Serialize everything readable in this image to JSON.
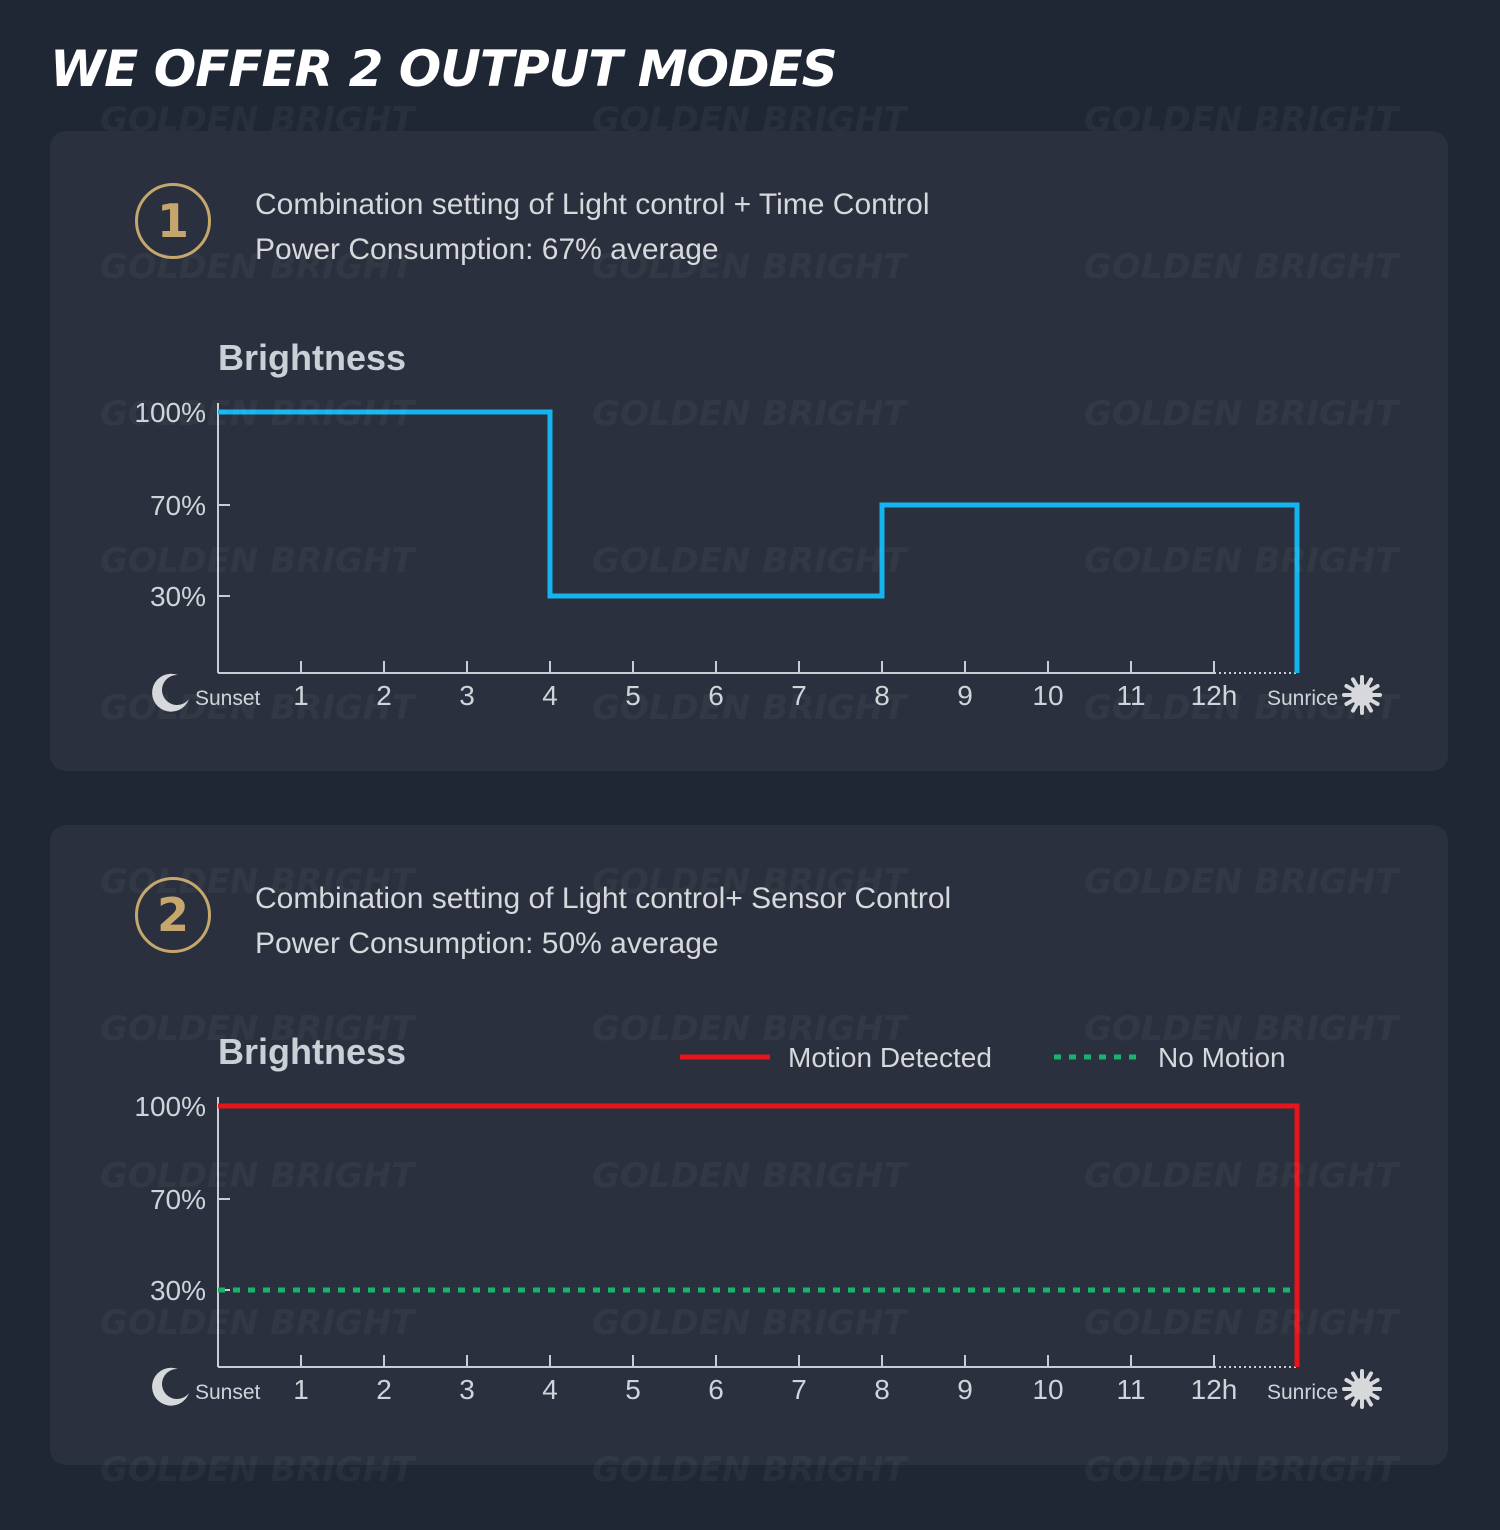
{
  "page_title": "WE OFFER 2 OUTPUT MODES",
  "watermark_text": "GOLDEN BRIGHT",
  "colors": {
    "background": "#1f2735",
    "panel": "#2a303d",
    "badge": "#c5a76d",
    "mode1_line": "#14b4ee",
    "motion_line": "#e8141c",
    "no_motion_line": "#19b46a",
    "axis": "#c9ccd2"
  },
  "modes": [
    {
      "number": "1",
      "line1": "Combination setting of Light control + Time Control",
      "line2": "Power Consumption: 67% average"
    },
    {
      "number": "2",
      "line1": "Combination setting of Light control+ Sensor Control",
      "line2": "Power Consumption: 50% average"
    }
  ],
  "chart_data": [
    {
      "type": "line",
      "step": true,
      "ylabel": "Brightness",
      "y_ticks": [
        "100%",
        "70%",
        "30%"
      ],
      "y_tick_values": [
        100,
        70,
        30
      ],
      "x_start_label": "Sunset",
      "x_end_label": "Sunrice",
      "x_ticks": [
        "1",
        "2",
        "3",
        "4",
        "5",
        "6",
        "7",
        "8",
        "9",
        "10",
        "11",
        "12h"
      ],
      "start_icon": "moon-icon",
      "end_icon": "sun-icon",
      "series": [
        {
          "color": "#14b4ee",
          "style": "solid",
          "points": [
            [
              0,
              100
            ],
            [
              4,
              100
            ],
            [
              4,
              30
            ],
            [
              8,
              30
            ],
            [
              8,
              70
            ],
            [
              13,
              70
            ],
            [
              13,
              0
            ]
          ]
        }
      ]
    },
    {
      "type": "line",
      "step": true,
      "ylabel": "Brightness",
      "y_ticks": [
        "100%",
        "70%",
        "30%"
      ],
      "y_tick_values": [
        100,
        70,
        30
      ],
      "x_start_label": "Sunset",
      "x_end_label": "Sunrice",
      "x_ticks": [
        "1",
        "2",
        "3",
        "4",
        "5",
        "6",
        "7",
        "8",
        "9",
        "10",
        "11",
        "12h"
      ],
      "start_icon": "moon-icon",
      "end_icon": "sun-icon",
      "legend": [
        "Motion Detected",
        "No Motion"
      ],
      "series": [
        {
          "name": "Motion Detected",
          "color": "#e8141c",
          "style": "solid",
          "points": [
            [
              0,
              100
            ],
            [
              13,
              100
            ],
            [
              13,
              0
            ]
          ]
        },
        {
          "name": "No Motion",
          "color": "#19b46a",
          "style": "dotted",
          "points": [
            [
              0,
              30
            ],
            [
              13,
              30
            ],
            [
              13,
              0
            ]
          ]
        }
      ]
    }
  ]
}
